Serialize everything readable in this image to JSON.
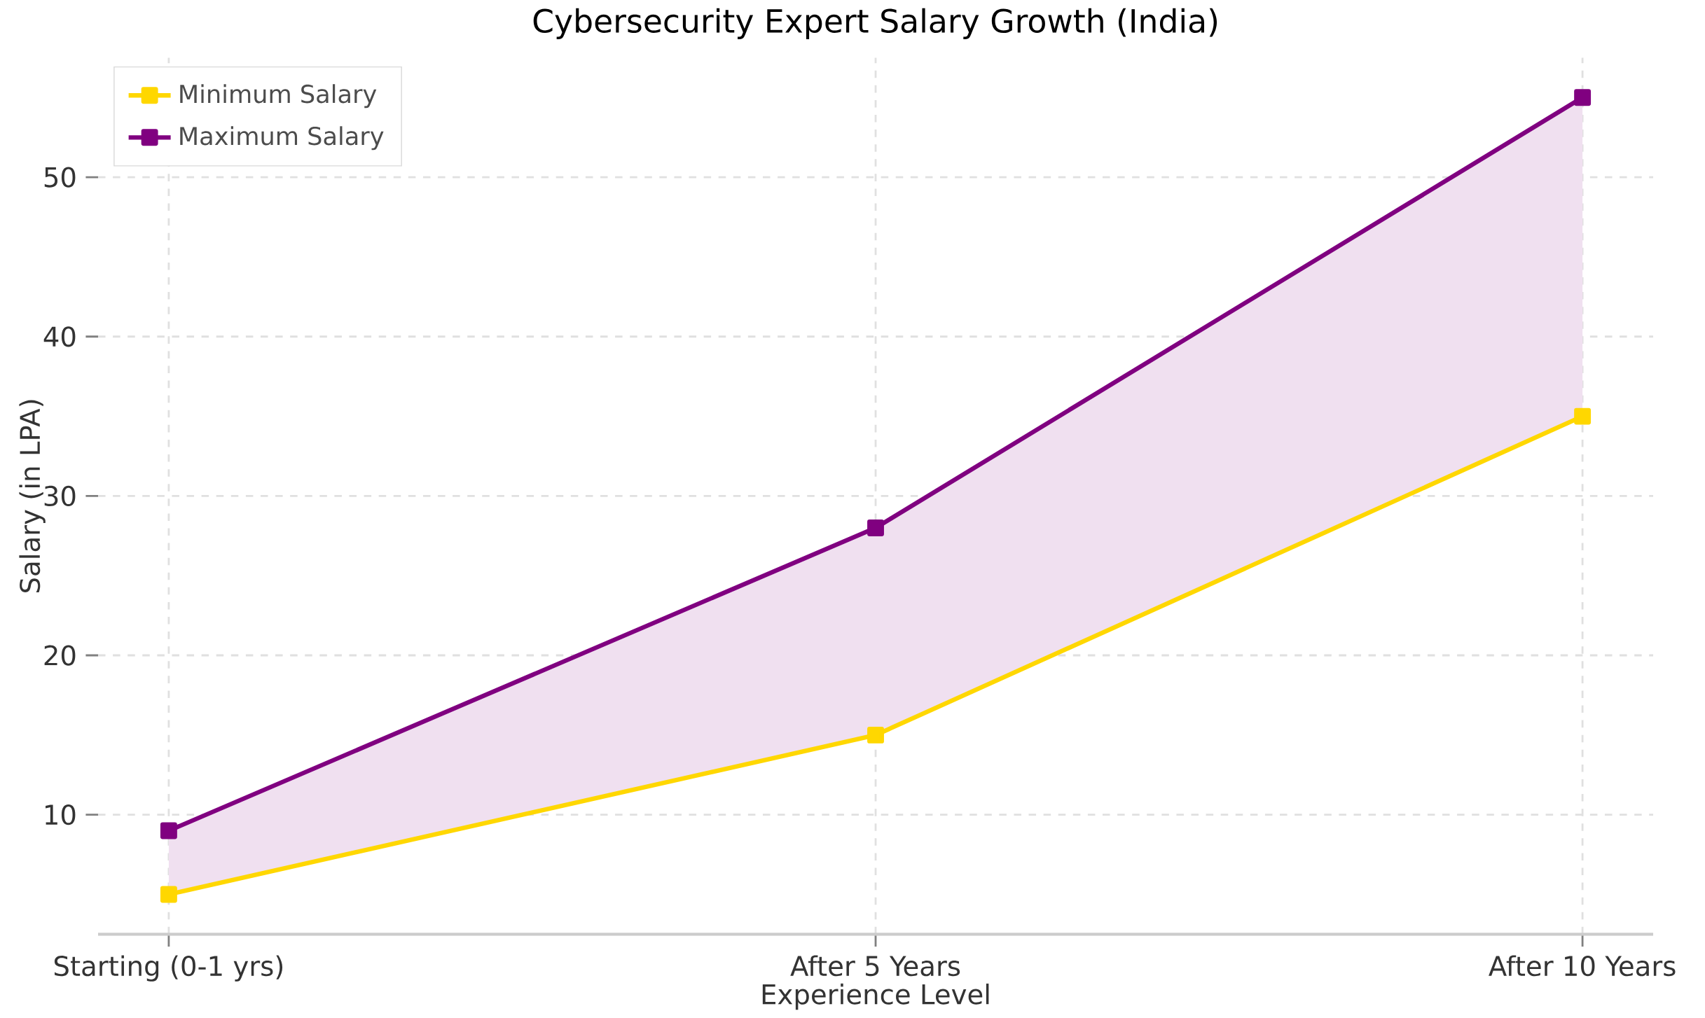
{
  "chart_data": {
    "type": "line",
    "title": "Cybersecurity Expert Salary Growth (India)",
    "xlabel": "Experience Level",
    "ylabel": "Salary (in LPA)",
    "categories": [
      "Starting (0-1 yrs)",
      "After 5 Years",
      "After 10 Years"
    ],
    "series": [
      {
        "name": "Minimum Salary",
        "color": "#ffd700",
        "values": [
          5,
          15,
          35
        ]
      },
      {
        "name": "Maximum Salary",
        "color": "#800080",
        "values": [
          9,
          28,
          55
        ],
        "lower": [
          5,
          15,
          35
        ],
        "upper": [
          9,
          28,
          55
        ]
      }
    ],
    "ylim": [
      2.5,
      57.5
    ],
    "yticks": [
      10,
      20,
      30,
      40,
      50
    ],
    "grid": true,
    "legend": "top left",
    "marker": "square",
    "line_style": "solid"
  }
}
